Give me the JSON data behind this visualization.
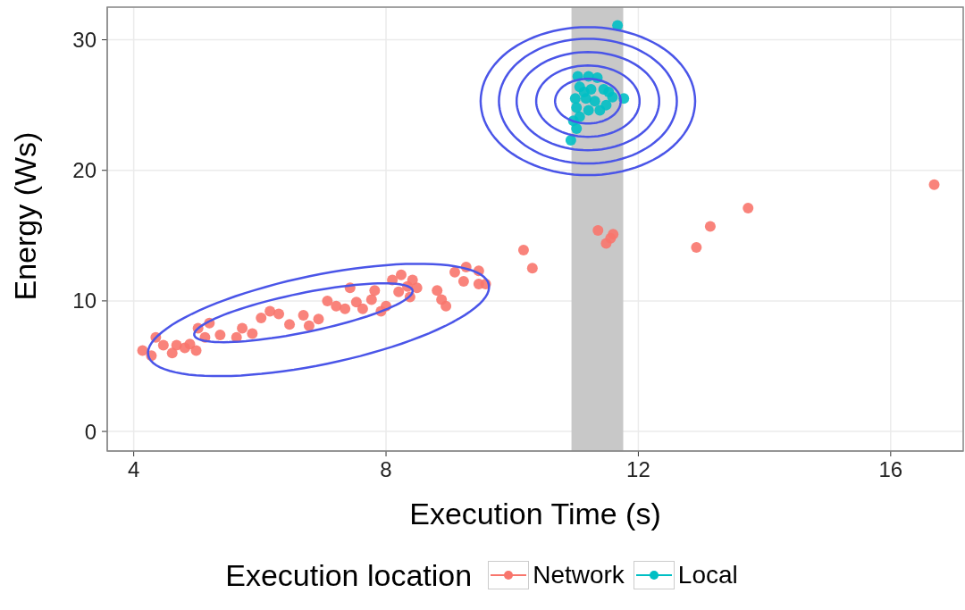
{
  "chart_data": {
    "type": "scatter",
    "xlabel": "Execution Time (s)",
    "ylabel": "Energy (Ws)",
    "legend_title": "Execution location",
    "xlim": [
      3.58,
      17.15
    ],
    "ylim": [
      -1.5,
      32.5
    ],
    "xticks": [
      4,
      8,
      12,
      16
    ],
    "yticks": [
      0,
      10,
      20,
      30
    ],
    "grid": true,
    "legend": "bottom",
    "marker": "circle",
    "bands": [
      {
        "axis": "x",
        "from": 10.94,
        "to": 11.76,
        "color": "#c8c8c8"
      }
    ],
    "series": [
      {
        "name": "Network",
        "color": "#f8766d",
        "x": [
          4.14,
          4.28,
          4.35,
          4.47,
          4.61,
          4.68,
          4.81,
          4.89,
          4.99,
          5.02,
          5.13,
          5.2,
          5.37,
          5.63,
          5.72,
          5.88,
          6.02,
          6.16,
          6.3,
          6.47,
          6.69,
          6.78,
          6.93,
          7.07,
          7.21,
          7.35,
          7.43,
          7.53,
          7.63,
          7.77,
          7.82,
          7.92,
          8.0,
          8.1,
          8.24,
          8.34,
          8.42,
          8.49,
          8.2,
          8.38,
          8.81,
          8.88,
          8.95,
          9.09,
          9.27,
          9.23,
          9.47,
          9.47,
          9.58,
          10.18,
          10.32,
          11.36,
          11.6,
          11.56,
          11.49,
          12.92,
          13.14,
          13.74,
          16.69
        ],
        "values": [
          6.2,
          5.8,
          7.2,
          6.6,
          6.0,
          6.6,
          6.4,
          6.7,
          6.2,
          7.9,
          7.2,
          8.3,
          7.4,
          7.2,
          7.9,
          7.5,
          8.7,
          9.2,
          9.0,
          8.2,
          8.9,
          8.1,
          8.6,
          10.0,
          9.6,
          9.4,
          11.0,
          9.9,
          9.4,
          10.1,
          10.8,
          9.2,
          9.6,
          11.6,
          12.0,
          11.1,
          11.6,
          11.0,
          10.7,
          10.3,
          10.8,
          10.1,
          9.6,
          12.2,
          12.6,
          11.5,
          12.3,
          11.3,
          11.3,
          13.9,
          12.5,
          15.4,
          15.1,
          14.8,
          14.4,
          14.1,
          15.7,
          17.1,
          18.9
        ]
      },
      {
        "name": "Local",
        "color": "#00bfc4",
        "x": [
          11.67,
          11.77,
          10.93,
          11.02,
          11.04,
          11.21,
          11.35,
          11.07,
          11.25,
          11.45,
          11.53,
          11.59,
          11.0,
          11.17,
          11.31,
          11.02,
          11.21,
          11.39,
          11.07,
          10.97,
          11.49,
          11.14
        ],
        "values": [
          31.1,
          25.5,
          22.3,
          23.2,
          27.2,
          27.2,
          27.1,
          26.4,
          26.2,
          26.2,
          26.0,
          25.6,
          25.5,
          25.5,
          25.3,
          24.8,
          24.6,
          24.6,
          24.1,
          23.8,
          25.0,
          26.0
        ]
      }
    ]
  }
}
